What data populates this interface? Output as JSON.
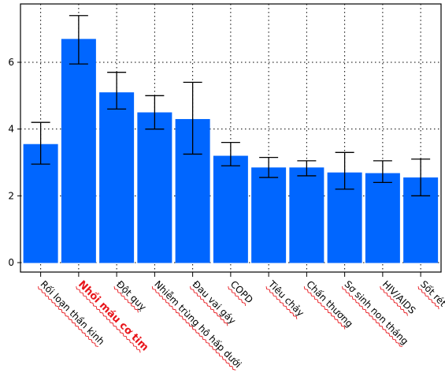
{
  "chart_data": {
    "type": "bar",
    "title": "",
    "xlabel": "",
    "ylabel": "",
    "ylim": [
      0,
      7.5
    ],
    "yticks": [
      0,
      2,
      4,
      6
    ],
    "grid": true,
    "bar_color": "#0066ff",
    "highlight_color": "#e8151b",
    "highlighted_category": "Nhồi máu cơ tim",
    "categories": [
      "Rối loạn thần kinh",
      "Nhồi máu cơ tim",
      "Đột quỵ",
      "Nhiễm trùng hô hấp dưới",
      "Đau vai gáy",
      "COPD",
      "Tiêu chảy",
      "Chấn thương",
      "Sơ sinh non tháng",
      "HIV/AIDS",
      "Sốt rét"
    ],
    "values": [
      3.55,
      6.7,
      5.1,
      4.5,
      4.3,
      3.2,
      2.85,
      2.85,
      2.7,
      2.68,
      2.55
    ],
    "error_low": [
      2.95,
      5.95,
      4.6,
      4.0,
      3.25,
      2.9,
      2.55,
      2.6,
      2.2,
      2.4,
      2.0
    ],
    "error_high": [
      4.2,
      7.4,
      5.7,
      5.0,
      5.4,
      3.6,
      3.15,
      3.05,
      3.3,
      3.05,
      3.1
    ]
  }
}
